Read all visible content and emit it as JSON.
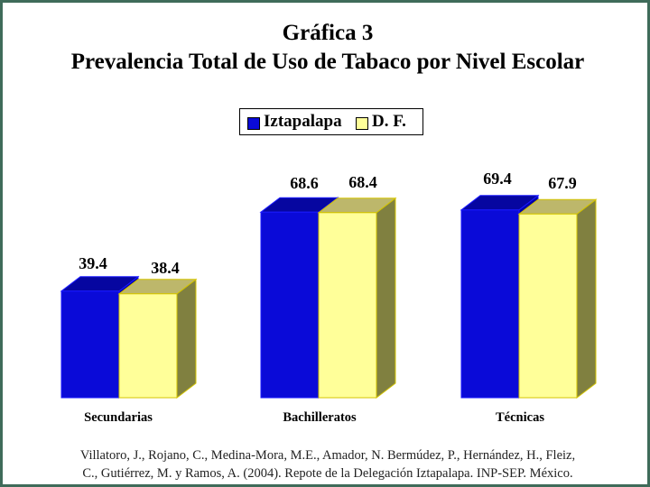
{
  "title_line1": "Gráfica 3",
  "title_line2": "Prevalencia Total de Uso de Tabaco por Nivel Escolar",
  "colors": {
    "iztapalapa_front": "#0a0ad8",
    "iztapalapa_top": "#0606a0",
    "iztapalapa_side": "#0000a8",
    "df_front": "#ffff99",
    "df_top": "#bdb76b",
    "df_side": "#808040",
    "frame": "#3f6b5a"
  },
  "chart_data": {
    "type": "bar",
    "categories": [
      "Secundarias",
      "Bachilleratos",
      "Técnicas"
    ],
    "series": [
      {
        "name": "Iztapalapa",
        "values": [
          39.4,
          68.6,
          69.4
        ],
        "labels": [
          "39.4",
          "68.6",
          "69.4"
        ]
      },
      {
        "name": "D. F.",
        "values": [
          38.4,
          68.4,
          67.9
        ],
        "labels": [
          "38.4",
          "68.4",
          "67.9"
        ]
      }
    ],
    "ylim": [
      0,
      75
    ],
    "grid": false,
    "legend_position": "top-center",
    "style": "3d-clustered-columns"
  },
  "footnote_line1": "Villatoro, J., Rojano, C., Medina-Mora, M.E., Amador, N. Bermúdez, P., Hernández, H., Fleiz,",
  "footnote_line2": "C., Gutiérrez, M. y Ramos, A. (2004). Repote de la Delegación Iztapalapa. INP-SEP. México."
}
